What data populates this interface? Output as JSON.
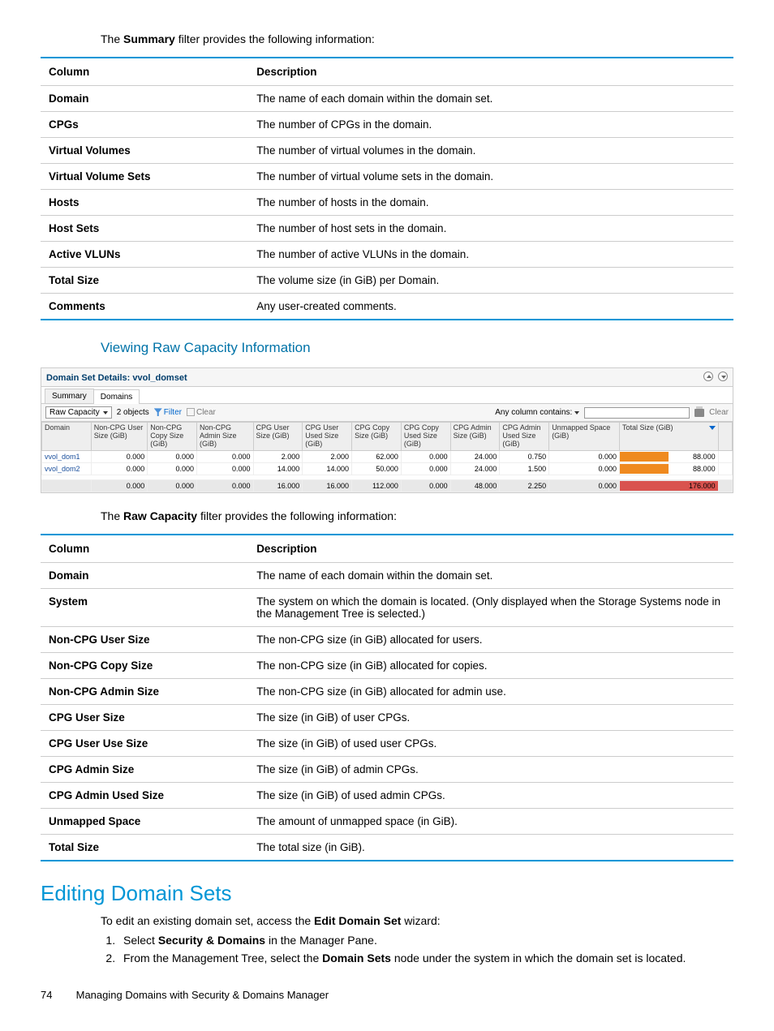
{
  "intro1_pre": "The ",
  "intro1_bold": "Summary",
  "intro1_post": " filter provides the following information:",
  "table1": {
    "h1": "Column",
    "h2": "Description",
    "rows": [
      {
        "c": "Domain",
        "d": "The name of each domain within the domain set."
      },
      {
        "c": "CPGs",
        "d": "The number of CPGs in the domain."
      },
      {
        "c": "Virtual Volumes",
        "d": "The number of virtual volumes in the domain."
      },
      {
        "c": "Virtual Volume Sets",
        "d": "The number of virtual volume sets in the domain."
      },
      {
        "c": "Hosts",
        "d": "The number of hosts in the domain."
      },
      {
        "c": "Host Sets",
        "d": "The number of host sets in the domain."
      },
      {
        "c": "Active VLUNs",
        "d": "The number of active VLUNs in the domain."
      },
      {
        "c": "Total Size",
        "d": "The volume size (in GiB) per Domain."
      },
      {
        "c": "Comments",
        "d": "Any user-created comments."
      }
    ]
  },
  "sub1": "Viewing Raw Capacity Information",
  "panel": {
    "title": "Domain Set Details: vvol_domset",
    "tabs": [
      "Summary",
      "Domains"
    ],
    "activeTab": 1,
    "selector": "Raw Capacity",
    "objects": "2 objects",
    "filter": "Filter",
    "clear": "Clear",
    "anycol": "Any column contains:",
    "clearRight": "Clear",
    "cols": [
      "Domain",
      "Non-CPG User Size (GiB)",
      "Non-CPG Copy Size (GiB)",
      "Non-CPG Admin Size (GiB)",
      "CPG User Size (GiB)",
      "CPG User Used Size (GiB)",
      "CPG Copy Size (GiB)",
      "CPG Copy Used Size (GiB)",
      "CPG Admin Size (GiB)",
      "CPG Admin Used Size (GiB)",
      "Unmapped Space (GiB)",
      "Total Size (GiB)"
    ],
    "rows": [
      {
        "d": "vvol_dom1",
        "v": [
          "0.000",
          "0.000",
          "0.000",
          "2.000",
          "2.000",
          "62.000",
          "0.000",
          "24.000",
          "0.750",
          "0.000"
        ],
        "total": "88.000",
        "barPct": 50
      },
      {
        "d": "vvol_dom2",
        "v": [
          "0.000",
          "0.000",
          "0.000",
          "14.000",
          "14.000",
          "50.000",
          "0.000",
          "24.000",
          "1.500",
          "0.000"
        ],
        "total": "88.000",
        "barPct": 50
      }
    ],
    "totals": {
      "v": [
        "0.000",
        "0.000",
        "0.000",
        "16.000",
        "16.000",
        "112.000",
        "0.000",
        "48.000",
        "2.250",
        "0.000"
      ],
      "total": "176.000",
      "barPct": 100
    }
  },
  "intro2_pre": "The ",
  "intro2_bold": "Raw Capacity",
  "intro2_post": " filter provides the following information:",
  "table2": {
    "h1": "Column",
    "h2": "Description",
    "rows": [
      {
        "c": "Domain",
        "d": "The name of each domain within the domain set."
      },
      {
        "c": "System",
        "d": "The system on which the domain is located. (Only displayed when the Storage Systems node in the Management Tree is selected.)"
      },
      {
        "c": "Non-CPG User Size",
        "d": "The non-CPG size (in GiB) allocated for users."
      },
      {
        "c": "Non-CPG Copy Size",
        "d": "The non-CPG size (in GiB) allocated for copies."
      },
      {
        "c": "Non-CPG Admin Size",
        "d": "The non-CPG size (in GiB) allocated for admin use."
      },
      {
        "c": "CPG User Size",
        "d": "The size (in GiB) of user CPGs."
      },
      {
        "c": "CPG User Use Size",
        "d": "The size (in GiB) of used user CPGs."
      },
      {
        "c": "CPG Admin Size",
        "d": "The size (in GiB) of admin CPGs."
      },
      {
        "c": "CPG Admin Used Size",
        "d": "The size (in GiB) of used admin CPGs."
      },
      {
        "c": "Unmapped Space",
        "d": "The amount of unmapped space (in GiB)."
      },
      {
        "c": "Total Size",
        "d": "The total size (in GiB)."
      }
    ]
  },
  "h2": "Editing Domain Sets",
  "para_pre": "To edit an existing domain set, access the ",
  "para_bold": "Edit Domain Set",
  "para_post": " wizard:",
  "step1_pre": "Select ",
  "step1_bold": "Security & Domains",
  "step1_post": " in the Manager Pane.",
  "step2_pre": "From the Management Tree, select the ",
  "step2_bold": "Domain Sets",
  "step2_post": " node under the system in which the domain set is located.",
  "footer_page": "74",
  "footer_text": "Managing Domains with Security & Domains Manager"
}
